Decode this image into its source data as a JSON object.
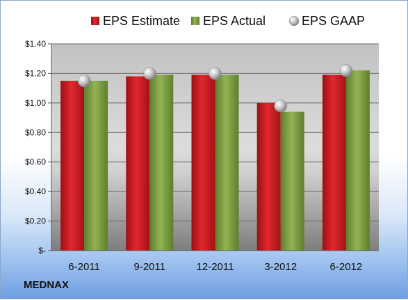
{
  "chart_data": {
    "type": "bar",
    "categories": [
      "6-2011",
      "9-2011",
      "12-2011",
      "3-2012",
      "6-2012"
    ],
    "series": [
      {
        "name": "EPS Estimate",
        "values": [
          1.15,
          1.18,
          1.19,
          1.0,
          1.19
        ],
        "color": "#c8181e"
      },
      {
        "name": "EPS Actual",
        "values": [
          1.15,
          1.19,
          1.19,
          0.94,
          1.22
        ],
        "color": "#7fa040"
      },
      {
        "name": "EPS GAAP",
        "values": [
          1.15,
          1.2,
          1.2,
          0.98,
          1.22
        ],
        "color": "#a8a8a8",
        "marker": "sphere"
      }
    ],
    "y_ticks": [
      {
        "value": 0,
        "label": "$-"
      },
      {
        "value": 0.2,
        "label": "$0.20"
      },
      {
        "value": 0.4,
        "label": "$0.40"
      },
      {
        "value": 0.6,
        "label": "$0.60"
      },
      {
        "value": 0.8,
        "label": "$0.80"
      },
      {
        "value": 1.0,
        "label": "$1.00"
      },
      {
        "value": 1.2,
        "label": "$1.20"
      },
      {
        "value": 1.4,
        "label": "$1.40"
      }
    ],
    "ylim": [
      0,
      1.4
    ],
    "grid": true,
    "legend_position": "top",
    "company": "MEDNAX"
  }
}
